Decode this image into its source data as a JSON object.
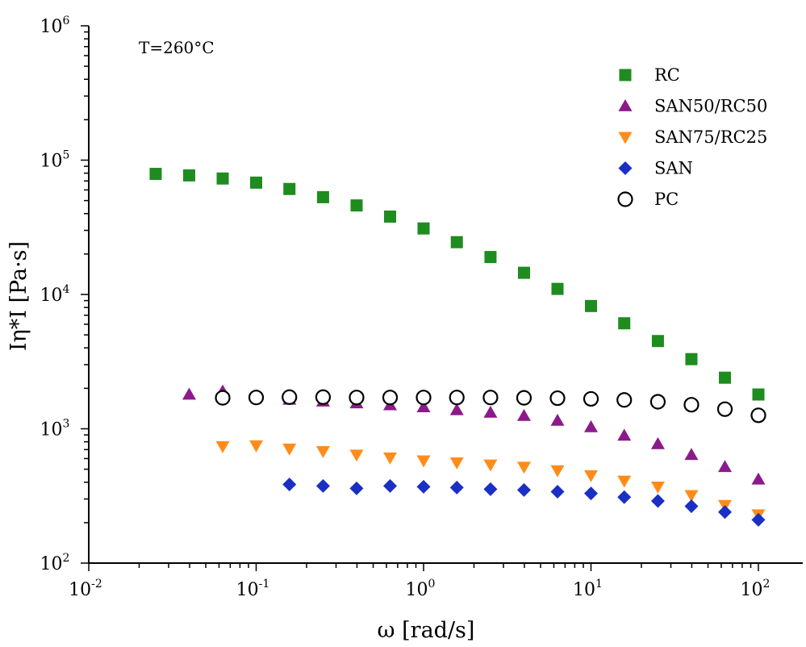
{
  "chart_data": {
    "type": "scatter",
    "title": "",
    "annotation": "T=260°C",
    "xlabel": "ω [rad/s]",
    "ylabel": "Iη*I [Pa·s]",
    "xscale": "log",
    "yscale": "log",
    "xlim": [
      0.01,
      200
    ],
    "ylim": [
      100,
      1000000
    ],
    "x_ticks": [
      {
        "base": "10",
        "exp": "-2",
        "value": 0.01
      },
      {
        "base": "10",
        "exp": "-1",
        "value": 0.1
      },
      {
        "base": "10",
        "exp": "0",
        "value": 1
      },
      {
        "base": "10",
        "exp": "1",
        "value": 10
      },
      {
        "base": "10",
        "exp": "2",
        "value": 100
      }
    ],
    "y_ticks": [
      {
        "base": "10",
        "exp": "2",
        "value": 100
      },
      {
        "base": "10",
        "exp": "3",
        "value": 1000
      },
      {
        "base": "10",
        "exp": "4",
        "value": 10000
      },
      {
        "base": "10",
        "exp": "5",
        "value": 100000
      },
      {
        "base": "10",
        "exp": "6",
        "value": 1000000
      }
    ],
    "legend_position": "top-right",
    "grid": false,
    "series": [
      {
        "name": "RC",
        "marker": "square",
        "color": "#1e8c1e",
        "filled": true,
        "x": [
          0.0251,
          0.0398,
          0.0631,
          0.1,
          0.158,
          0.251,
          0.398,
          0.631,
          1,
          1.58,
          2.51,
          3.98,
          6.31,
          10,
          15.8,
          25.1,
          39.8,
          63.1,
          100
        ],
        "y": [
          79000,
          77000,
          73000,
          68000,
          61000,
          53000,
          46000,
          38000,
          31000,
          24500,
          19000,
          14500,
          11000,
          8200,
          6100,
          4500,
          3300,
          2400,
          1800
        ]
      },
      {
        "name": "SAN50/RC50",
        "marker": "triangle-up",
        "color": "#8b1a8b",
        "filled": true,
        "x": [
          0.0398,
          0.0631,
          0.1,
          0.158,
          0.251,
          0.398,
          0.631,
          1,
          1.58,
          2.51,
          3.98,
          6.31,
          10,
          15.8,
          25.1,
          39.8,
          63.1,
          100
        ],
        "y": [
          1800,
          1900,
          1750,
          1650,
          1600,
          1550,
          1500,
          1450,
          1380,
          1320,
          1250,
          1150,
          1030,
          890,
          770,
          640,
          520,
          420
        ]
      },
      {
        "name": "SAN75/RC25",
        "marker": "triangle-down",
        "color": "#ff8c1a",
        "filled": true,
        "x": [
          0.0631,
          0.1,
          0.158,
          0.251,
          0.398,
          0.631,
          1,
          1.58,
          2.51,
          3.98,
          6.31,
          10,
          15.8,
          25.1,
          39.8,
          63.1,
          100
        ],
        "y": [
          740,
          750,
          710,
          680,
          640,
          610,
          580,
          560,
          540,
          520,
          490,
          450,
          410,
          370,
          320,
          270,
          230
        ]
      },
      {
        "name": "SAN",
        "marker": "diamond",
        "color": "#1a2fc4",
        "filled": true,
        "x": [
          0.158,
          0.251,
          0.398,
          0.631,
          1,
          1.58,
          2.51,
          3.98,
          6.31,
          10,
          15.8,
          25.1,
          39.8,
          63.1,
          100
        ],
        "y": [
          385,
          375,
          360,
          375,
          370,
          365,
          355,
          350,
          340,
          330,
          310,
          290,
          265,
          240,
          210
        ]
      },
      {
        "name": "PC",
        "marker": "circle",
        "color": "#000000",
        "filled": false,
        "x": [
          0.0631,
          0.1,
          0.158,
          0.251,
          0.398,
          0.631,
          1,
          1.58,
          2.51,
          3.98,
          6.31,
          10,
          15.8,
          25.1,
          39.8,
          63.1,
          100
        ],
        "y": [
          1700,
          1710,
          1720,
          1720,
          1710,
          1710,
          1710,
          1710,
          1710,
          1700,
          1690,
          1670,
          1640,
          1590,
          1510,
          1400,
          1260
        ]
      }
    ]
  }
}
